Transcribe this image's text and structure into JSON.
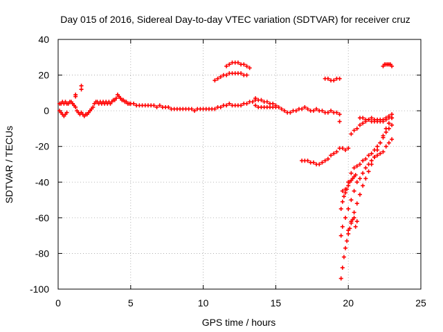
{
  "chart_data": {
    "type": "scatter",
    "title": "Day 015 of 2016, Sidereal Day-to-day VTEC variation (SDTVAR) for receiver cruz",
    "xlabel": "GPS time / hours",
    "ylabel": "SDTVAR / TECUs",
    "xlim": [
      0,
      25
    ],
    "ylim": [
      -100,
      40
    ],
    "xticks": [
      0,
      5,
      10,
      15,
      20,
      25
    ],
    "yticks": [
      40,
      20,
      0,
      -20,
      -40,
      -60,
      -80,
      -100
    ],
    "grid": true,
    "marker": "+",
    "color": "#ff0000",
    "series": [
      {
        "x": [
          0.1,
          0.2,
          0.3,
          0.4,
          0.5,
          0.6,
          0.7,
          0.8,
          0.9,
          1.0,
          1.1,
          1.2,
          1.3,
          1.4,
          1.5,
          1.6,
          1.7,
          1.8,
          1.9,
          2.0,
          2.1,
          2.2,
          2.3,
          2.4,
          2.5,
          2.6,
          2.7,
          2.8,
          2.9,
          3.0,
          3.1,
          3.2,
          3.3,
          3.4,
          3.5,
          3.6,
          3.7,
          3.8,
          3.9,
          4.0,
          4.1,
          4.2,
          4.3,
          4.4,
          4.5,
          4.6,
          4.7,
          4.8,
          4.9,
          5.0,
          5.2,
          5.4,
          5.6,
          5.8,
          6.0,
          6.2,
          6.4,
          6.6,
          6.8,
          7.0,
          7.2,
          7.4,
          7.6,
          7.8,
          8.0,
          8.2,
          8.4,
          8.6,
          8.8,
          9.0,
          9.2,
          9.4,
          9.6,
          9.8,
          10.0,
          10.2,
          10.4,
          10.6,
          10.8,
          11.0,
          11.2,
          11.4,
          11.6,
          11.8,
          12.0,
          12.2,
          12.4,
          12.6,
          12.8,
          13.0,
          13.2,
          13.4,
          13.6
        ],
        "y": [
          4,
          4,
          5,
          4,
          5,
          4,
          4,
          5,
          5,
          4,
          3,
          2,
          0,
          -1,
          -2,
          -1,
          -2,
          -3,
          -2,
          -2,
          -1,
          0,
          1,
          2,
          4,
          5,
          5,
          4,
          5,
          4,
          5,
          4,
          5,
          4,
          5,
          4,
          5,
          6,
          6,
          7,
          9,
          8,
          7,
          6,
          6,
          5,
          5,
          4,
          4,
          4,
          4,
          3,
          3,
          3,
          3,
          3,
          3,
          3,
          2,
          3,
          2,
          2,
          2,
          1,
          1,
          1,
          1,
          1,
          1,
          1,
          1,
          0,
          1,
          1,
          1,
          1,
          1,
          1,
          1,
          2,
          2,
          3,
          3,
          4,
          3,
          3,
          3,
          3,
          4,
          4,
          5,
          5,
          6
        ]
      },
      {
        "x": [
          0.1,
          0.2,
          0.3,
          0.4,
          0.5,
          0.6
        ],
        "y": [
          0,
          -1,
          -2,
          -3,
          -2,
          -1
        ]
      },
      {
        "x": [
          1.6,
          1.6,
          1.2,
          1.2
        ],
        "y": [
          14,
          12,
          9,
          8
        ]
      },
      {
        "x": [
          10.8,
          11.0,
          11.2,
          11.4,
          11.6,
          11.8,
          12.0,
          12.2,
          12.4,
          12.6,
          12.8,
          13.0
        ],
        "y": [
          17,
          18,
          19,
          20,
          20,
          21,
          21,
          21,
          21,
          21,
          20,
          20
        ]
      },
      {
        "x": [
          11.6,
          11.8,
          12.0,
          12.2,
          12.4,
          12.6,
          12.8,
          13.0,
          13.2
        ],
        "y": [
          25,
          26,
          27,
          27,
          27,
          26,
          26,
          25,
          24
        ]
      },
      {
        "x": [
          13.6,
          13.8,
          14.0,
          14.2,
          14.4,
          14.6,
          14.8,
          15.0,
          15.2,
          15.4,
          15.6,
          15.8,
          16.0,
          16.2,
          16.4,
          16.6,
          16.8,
          17.0,
          17.2,
          17.4,
          17.6,
          17.8,
          18.0,
          18.2,
          18.4,
          18.6,
          18.8,
          19.0,
          19.2,
          19.4
        ],
        "y": [
          7,
          6,
          6,
          5,
          5,
          4,
          4,
          3,
          2,
          1,
          0,
          -1,
          -1,
          0,
          0,
          1,
          1,
          2,
          1,
          0,
          0,
          1,
          0,
          0,
          -1,
          -1,
          0,
          -1,
          -1,
          -2
        ]
      },
      {
        "x": [
          13.6,
          13.8,
          14.0,
          14.2,
          14.4,
          14.6,
          14.8,
          15.0
        ],
        "y": [
          3,
          2,
          2,
          2,
          2,
          2,
          2,
          2
        ]
      },
      {
        "x": [
          18.4,
          18.6,
          18.8,
          19.0,
          19.2,
          19.4
        ],
        "y": [
          18,
          18,
          17,
          17,
          18,
          18
        ]
      },
      {
        "x": [
          16.8,
          17.0,
          17.2,
          17.4,
          17.6,
          17.8,
          18.0,
          18.2,
          18.4,
          18.6,
          18.8,
          19.0,
          19.2,
          19.4,
          19.6,
          19.8,
          20.0
        ],
        "y": [
          -28,
          -28,
          -28,
          -29,
          -29,
          -30,
          -30,
          -29,
          -28,
          -27,
          -25,
          -24,
          -23,
          -21,
          -21,
          -22,
          -21
        ]
      },
      {
        "x": [
          19.4
        ],
        "y": [
          -6
        ]
      },
      {
        "x": [
          19.5,
          19.6,
          19.7,
          19.8,
          19.9,
          20.0,
          20.1,
          20.2,
          20.3,
          20.4,
          20.5,
          20.6
        ],
        "y": [
          -94,
          -88,
          -82,
          -77,
          -73,
          -69,
          -66,
          -63,
          -61,
          -60,
          -65,
          -62
        ]
      },
      {
        "x": [
          19.5,
          19.6,
          19.8,
          20.0,
          20.2,
          20.4,
          20.6,
          20.8,
          21.0,
          21.2,
          21.4,
          21.6,
          21.8,
          22.0,
          22.2,
          22.4,
          22.6,
          22.8,
          23.0
        ],
        "y": [
          -70,
          -65,
          -60,
          -55,
          -50,
          -45,
          -40,
          -38,
          -35,
          -32,
          -30,
          -28,
          -26,
          -25,
          -24,
          -23,
          -20,
          -18,
          -16
        ]
      },
      {
        "x": [
          20.0,
          20.2,
          20.4,
          20.6,
          20.8,
          21.0,
          21.2,
          21.4,
          21.6,
          21.8,
          22.0,
          22.2,
          22.4,
          22.6,
          22.8,
          23.0
        ],
        "y": [
          -67,
          -62,
          -57,
          -52,
          -47,
          -42,
          -38,
          -34,
          -30,
          -26,
          -22,
          -18,
          -14,
          -10,
          -7,
          -4
        ]
      },
      {
        "x": [
          19.5,
          19.6,
          19.7,
          19.8,
          19.9,
          20.0,
          20.1,
          20.2,
          20.3,
          20.4,
          20.5
        ],
        "y": [
          -55,
          -51,
          -48,
          -46,
          -44,
          -42,
          -40,
          -39,
          -38,
          -37,
          -36
        ]
      },
      {
        "x": [
          19.6,
          19.8,
          20.0,
          20.2,
          20.4,
          20.6,
          20.8,
          21.0,
          21.2,
          21.4,
          21.6,
          21.8,
          22.0,
          22.2,
          22.4,
          22.6,
          22.8,
          23.0
        ],
        "y": [
          -45,
          -44,
          -40,
          -35,
          -32,
          -31,
          -30,
          -28,
          -27,
          -25,
          -24,
          -22,
          -20,
          -18,
          -15,
          -12,
          -10,
          -8
        ]
      },
      {
        "x": [
          20.2,
          20.4,
          20.6,
          20.8,
          21.0,
          21.2,
          21.4,
          21.6,
          21.8,
          22.0,
          22.2,
          22.4,
          22.6,
          22.8,
          23.0
        ],
        "y": [
          -13,
          -11,
          -10,
          -8,
          -7,
          -6,
          -5,
          -4,
          -5,
          -5,
          -6,
          -6,
          -5,
          -4,
          -4
        ]
      },
      {
        "x": [
          20.8,
          21.0,
          21.2,
          21.4,
          21.6,
          21.8,
          22.0,
          22.2,
          22.4,
          22.6,
          22.8,
          23.0
        ],
        "y": [
          -4,
          -4,
          -5,
          -5,
          -6,
          -6,
          -6,
          -5,
          -5,
          -4,
          -3,
          -2
        ]
      },
      {
        "x": [
          22.4,
          22.5,
          22.6,
          22.7,
          22.8,
          22.9,
          23.0
        ],
        "y": [
          25,
          26,
          26,
          26,
          26,
          26,
          25
        ]
      }
    ]
  }
}
